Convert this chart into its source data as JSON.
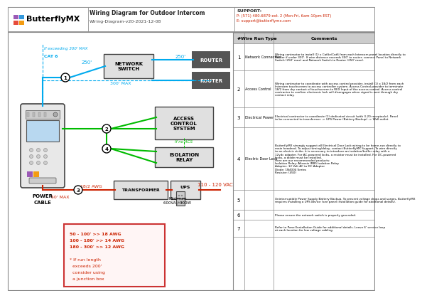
{
  "title": "Wiring Diagram for Outdoor Intercom",
  "subtitle": "Wiring-Diagram-v20-2021-12-08",
  "support_title": "SUPPORT:",
  "support_phone": "P: (571) 480.6879 ext. 2 (Mon-Fri, 6am-10pm EST)",
  "support_email": "E: support@butterflymx.com",
  "bg_color": "#ffffff",
  "table_rows": [
    {
      "num": "1",
      "type": "Network Connection",
      "comment": "Wiring contractor to install (1) x CatSe/Cat6 from each Intercom panel location directly to\nRouter if under 300'. If wire distance exceeds 300' to router, connect Panel to Network\nSwitch (250' max) and Network Switch to Router (250' max)."
    },
    {
      "num": "2",
      "type": "Access Control",
      "comment": "Wiring contractor to coordinate with access control provider, install (1) x 18/2 from each\nIntercom touchscreen to access controller system. Access Control provider to terminate\n18/2 from dry contact of touchscreen to REX Input of the access control. Access control\ncontractor to confirm electronic lock will disengages when signal is sent through dry\ncontact relay."
    },
    {
      "num": "3",
      "type": "Electrical Power",
      "comment": "Electrical contractor to coordinate (1) dedicated circuit (with 3-20 receptacle). Panel\nto be connected to transformer -> UPS Power (Battery Backup) -> Wall outlet"
    },
    {
      "num": "4",
      "type": "Electric Door Lock",
      "comment": "ButterflyMX strongly suggest all Electrical Door Lock wiring to be home-run directly to\nmain headend. To adjust timing/delay, contact ButterflyMX Support. To wire directly\nto an electric strike, it is necessary to introduce an isolation/buffer relay with a\n12vdc adapter. For AC-powered locks, a resistor must be installed. For DC-powered\nlocks, a diode must be installed.\nHere are our recommended products:\nIsolation Relay: Altronix IRB5 Isolation Relay\nAdapter: 12 Volt AC to DC Adapter\nDiode: 1N4004 Series\nResistor: (450)"
    },
    {
      "num": "5",
      "type": "",
      "comment": "Uninterruptible Power Supply Battery Backup. To prevent voltage drops and surges, ButterflyMX\nrequires installing a UPS device (see panel installation guide for additional details)."
    },
    {
      "num": "6",
      "type": "",
      "comment": "Please ensure the network switch is properly grounded."
    },
    {
      "num": "7",
      "type": "",
      "comment": "Refer to Panel Installation Guide for additional details. Leave 6' service loop\nat each location for low voltage cabling."
    }
  ],
  "wire_cat6": "#00aaee",
  "wire_green": "#00bb00",
  "wire_red": "#cc2200",
  "box_gray": "#dddddd",
  "box_dark": "#555555",
  "logo_purple": "#9b59b6",
  "logo_blue": "#3498db",
  "logo_red": "#e74c3c",
  "logo_orange": "#f39c12",
  "logo_green": "#2ecc71",
  "logo_yellow": "#f1c40f"
}
